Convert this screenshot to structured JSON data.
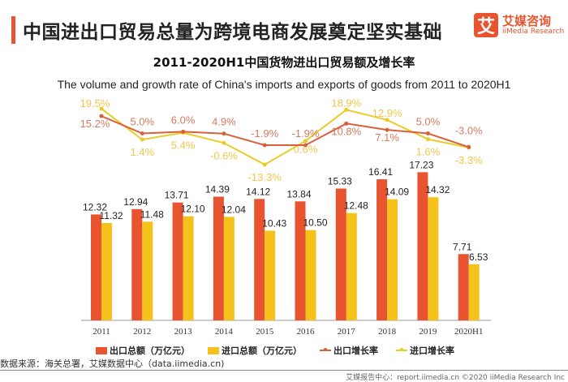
{
  "header": {
    "title": "中国进出口贸易总量为跨境电商发展奠定坚实基础",
    "logo_mark": "艾",
    "logo_cn": "艾媒咨询",
    "logo_en": "iiMedia Research"
  },
  "chart_data": {
    "type": "bar",
    "title": "2011-2020H1中国货物进出口贸易额及增长率",
    "subtitle": "The volume and growth rate of China's imports and exports of goods from 2011 to 2020H1",
    "categories": [
      "2011",
      "2012",
      "2013",
      "2014",
      "2015",
      "2016",
      "2017",
      "2018",
      "2019",
      "2020H1"
    ],
    "series": [
      {
        "name": "出口总额（万亿元）",
        "type": "bar",
        "color": "#e8542f",
        "values": [
          12.32,
          12.94,
          13.71,
          14.39,
          14.12,
          13.84,
          15.33,
          16.41,
          17.23,
          7.71
        ]
      },
      {
        "name": "进口总额（万亿元）",
        "type": "bar",
        "color": "#f5c21b",
        "values": [
          11.32,
          11.48,
          12.1,
          12.04,
          10.43,
          10.5,
          12.48,
          14.09,
          14.32,
          6.53
        ]
      },
      {
        "name": "出口增长率",
        "type": "line",
        "unit": "%",
        "color": "#d9603a",
        "values": [
          15.2,
          5.0,
          6.0,
          4.9,
          -1.9,
          -1.9,
          10.8,
          7.1,
          5.0,
          -3.0
        ]
      },
      {
        "name": "进口增长率",
        "type": "line",
        "unit": "%",
        "color": "#e8cc2a",
        "values": [
          19.5,
          1.4,
          5.4,
          -0.6,
          -13.3,
          0.6,
          18.9,
          12.9,
          1.6,
          -3.3
        ]
      }
    ],
    "grid": false,
    "legend": "bottom"
  },
  "source": "数据来源：海关总署，艾媒数据中心（data.iimedia.cn)",
  "footer": "艾媒报告中心：report.iimedia.cn  ©2020  iiMedia Research Inc"
}
